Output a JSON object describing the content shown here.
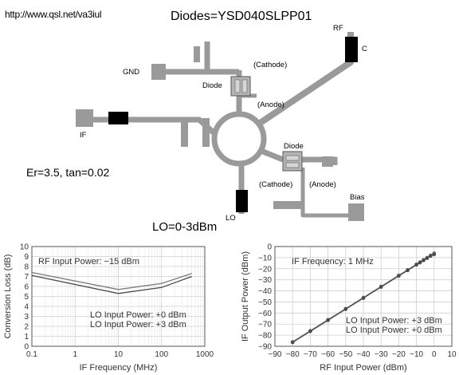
{
  "header": {
    "url": "http://www.qsl.net/va3iul",
    "diodes": "Diodes=YSD040SLPP01",
    "substrate": "Er=3.5, tan=0.02",
    "lo_level": "LO=0-3dBm"
  },
  "layout_labels": {
    "gnd": "GND",
    "rf": "RF",
    "c": "C",
    "if": "IF",
    "diode_top": "Diode",
    "cathode_top": "(Cathode)",
    "anode_top": "(Anode)",
    "diode_right": "Diode",
    "cathode_right": "(Cathode)",
    "anode_right": "(Anode)",
    "bias": "Bias",
    "lo": "LO"
  },
  "colors": {
    "trace": "#9a9a9a",
    "capacitor": "#000000",
    "diode_body": "#b4b4b4"
  },
  "chart_data": [
    {
      "type": "line",
      "x_scale": "log",
      "xlabel": "IF Frequency (MHz)",
      "ylabel": "Conversion Loss (dB)",
      "xlim": [
        0.1,
        1000
      ],
      "ylim": [
        0,
        10
      ],
      "x_ticks": [
        "0.1",
        "1",
        "10",
        "100",
        "1000"
      ],
      "y_ticks": [
        "0",
        "1",
        "2",
        "3",
        "4",
        "5",
        "6",
        "7",
        "8",
        "9",
        "10"
      ],
      "grid": true,
      "annotation": "RF Input Power: −15 dBm",
      "legend": [
        "LO Input Power: +0 dBm",
        "LO Input Power: +3 dBm"
      ],
      "series": [
        {
          "name": "LO Input Power: +0 dBm",
          "x": [
            0.1,
            10,
            100,
            500
          ],
          "y": [
            7.4,
            5.7,
            6.3,
            7.3
          ]
        },
        {
          "name": "LO Input Power: +3 dBm",
          "x": [
            0.1,
            10,
            100,
            500
          ],
          "y": [
            7.1,
            5.3,
            5.9,
            7.0
          ]
        }
      ]
    },
    {
      "type": "line",
      "xlabel": "RF Input Power (dBm)",
      "ylabel": "IF Output Power (dBm)",
      "xlim": [
        -90,
        10
      ],
      "ylim": [
        -90,
        0
      ],
      "x_ticks": [
        "−90",
        "−80",
        "−70",
        "−60",
        "−50",
        "−40",
        "−30",
        "−20",
        "−10",
        "0",
        "10"
      ],
      "y_ticks": [
        "−90",
        "−80",
        "−70",
        "−60",
        "−50",
        "−40",
        "−30",
        "−20",
        "−10",
        "0"
      ],
      "grid": true,
      "annotation": "IF Frequency: 1 MHz",
      "legend": [
        "LO Input Power: +3 dBm",
        "LO Input Power: +0 dBm"
      ],
      "series": [
        {
          "name": "LO Input Power: +3 dBm",
          "x": [
            -80,
            -70,
            -60,
            -50,
            -40,
            -30,
            -20,
            -15,
            -10,
            -8,
            -6,
            -4,
            -2,
            0
          ],
          "y": [
            -86,
            -76,
            -66,
            -56,
            -46,
            -36,
            -26,
            -21,
            -16,
            -14,
            -12,
            -10,
            -8,
            -6
          ]
        },
        {
          "name": "LO Input Power: +0 dBm",
          "x": [
            -80,
            -70,
            -60,
            -50,
            -40,
            -30,
            -20,
            -15,
            -10,
            -8,
            -6,
            -4,
            -2,
            0
          ],
          "y": [
            -86.5,
            -76.5,
            -66.5,
            -56.5,
            -46.5,
            -36.5,
            -26.5,
            -21.5,
            -16.5,
            -14.5,
            -12.5,
            -10.5,
            -8.5,
            -7
          ]
        }
      ]
    }
  ]
}
